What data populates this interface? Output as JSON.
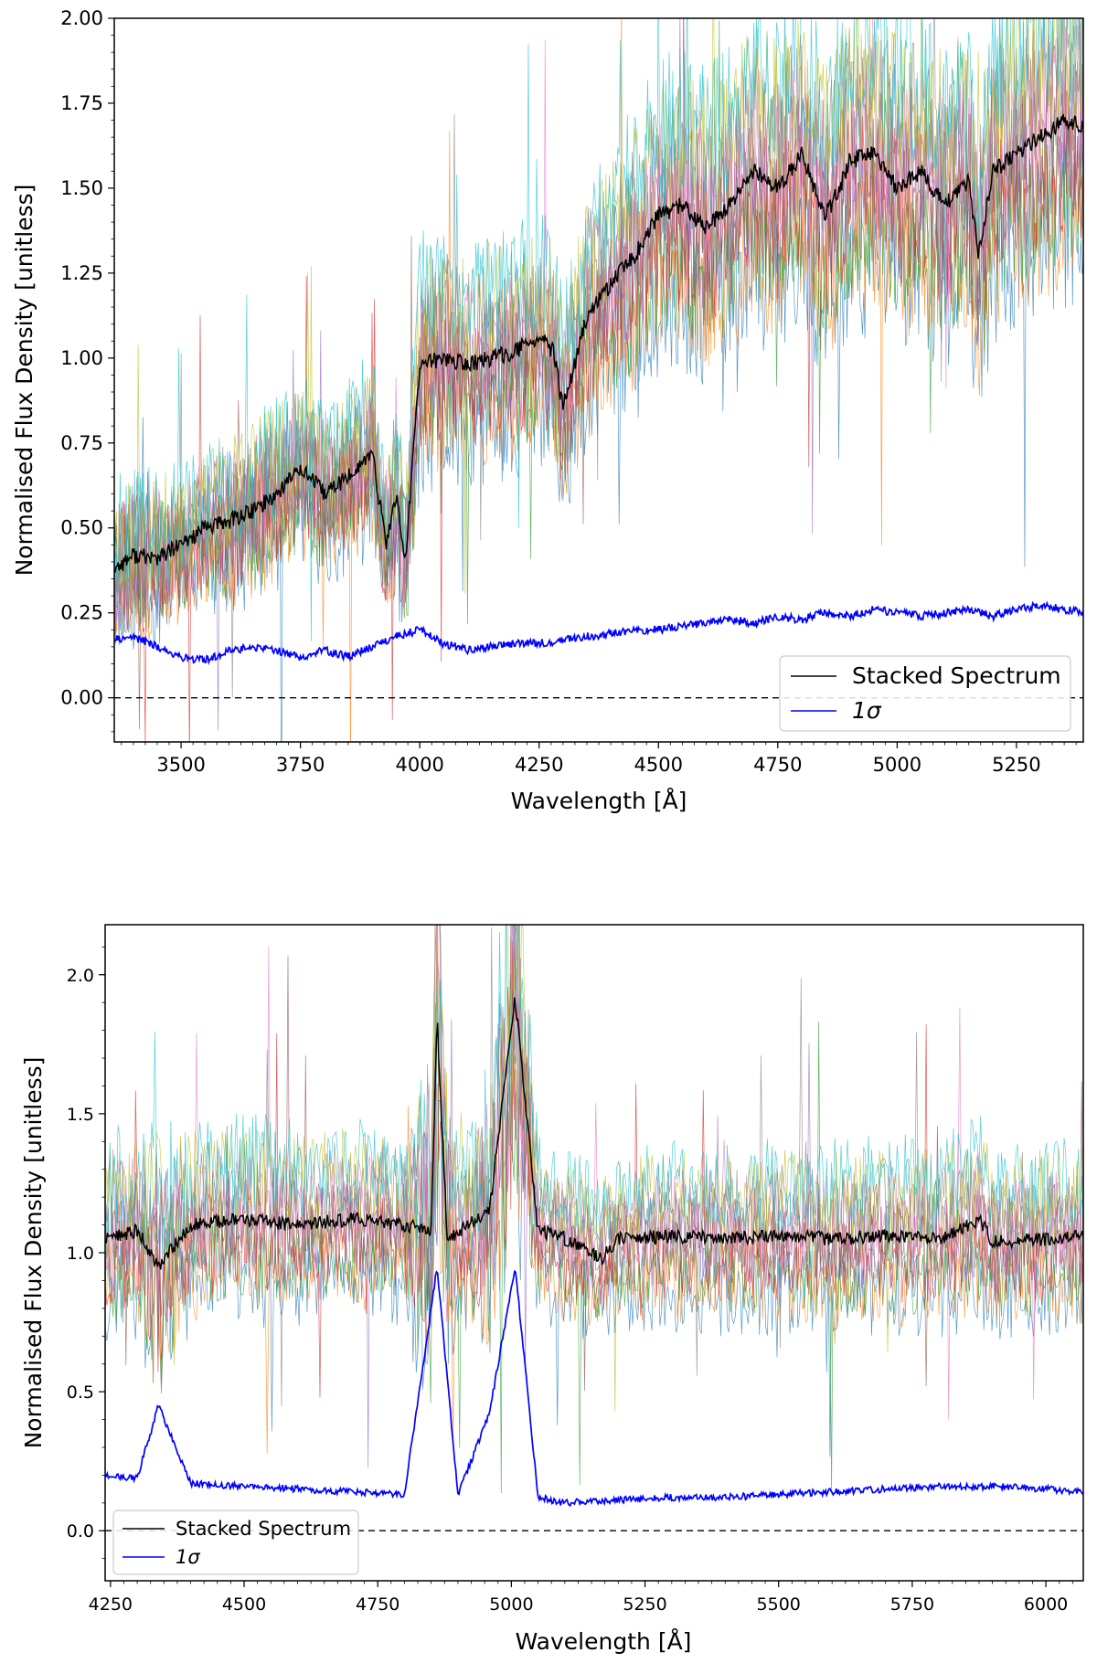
{
  "chart_data": [
    {
      "type": "line",
      "xlabel": "Wavelength [Å]",
      "ylabel": "Normalised Flux Density [unitless]",
      "xlim": [
        3360,
        5390
      ],
      "ylim": [
        -0.13,
        2.0
      ],
      "xticks": [
        3500,
        3750,
        4000,
        4250,
        4500,
        4750,
        5000,
        5250
      ],
      "xtick_labels": [
        "3500",
        "3750",
        "4000",
        "4250",
        "4500",
        "4750",
        "5000",
        "5250"
      ],
      "yticks": [
        0.0,
        0.25,
        0.5,
        0.75,
        1.0,
        1.25,
        1.5,
        1.75,
        2.0
      ],
      "ytick_labels": [
        "0.00",
        "0.25",
        "0.50",
        "0.75",
        "1.00",
        "1.25",
        "1.50",
        "1.75",
        "2.00"
      ],
      "legend": {
        "placement": "lower-right",
        "entries": [
          "Stacked Spectrum",
          "1σ"
        ]
      },
      "reference_line": {
        "y": 0.0,
        "style": "dashed"
      },
      "series": [
        {
          "name": "Stacked Spectrum",
          "color": "#000000",
          "x": [
            3360,
            3400,
            3450,
            3500,
            3550,
            3600,
            3650,
            3700,
            3750,
            3800,
            3850,
            3900,
            3930,
            3950,
            3970,
            4000,
            4050,
            4100,
            4150,
            4200,
            4250,
            4280,
            4300,
            4350,
            4400,
            4450,
            4500,
            4550,
            4600,
            4650,
            4700,
            4750,
            4800,
            4850,
            4880,
            4900,
            4950,
            5000,
            5050,
            5100,
            5150,
            5170,
            5200,
            5250,
            5300,
            5350,
            5390
          ],
          "values": [
            0.38,
            0.42,
            0.41,
            0.45,
            0.5,
            0.52,
            0.55,
            0.6,
            0.68,
            0.6,
            0.65,
            0.72,
            0.45,
            0.6,
            0.4,
            0.98,
            1.0,
            0.98,
            1.0,
            1.02,
            1.06,
            1.02,
            0.85,
            1.12,
            1.22,
            1.3,
            1.42,
            1.45,
            1.38,
            1.45,
            1.55,
            1.5,
            1.6,
            1.42,
            1.5,
            1.58,
            1.6,
            1.5,
            1.55,
            1.45,
            1.52,
            1.3,
            1.55,
            1.6,
            1.65,
            1.7,
            1.68
          ]
        },
        {
          "name": "1σ",
          "color": "#0000ff",
          "x": [
            3360,
            3400,
            3450,
            3500,
            3550,
            3600,
            3650,
            3700,
            3750,
            3800,
            3850,
            3900,
            3950,
            4000,
            4050,
            4100,
            4150,
            4200,
            4250,
            4300,
            4350,
            4400,
            4450,
            4500,
            4550,
            4600,
            4650,
            4700,
            4750,
            4800,
            4850,
            4900,
            4950,
            5000,
            5050,
            5100,
            5150,
            5200,
            5250,
            5300,
            5350,
            5390
          ],
          "values": [
            0.17,
            0.18,
            0.15,
            0.12,
            0.11,
            0.14,
            0.15,
            0.14,
            0.12,
            0.14,
            0.12,
            0.15,
            0.18,
            0.2,
            0.16,
            0.14,
            0.15,
            0.16,
            0.16,
            0.17,
            0.18,
            0.19,
            0.2,
            0.2,
            0.21,
            0.22,
            0.23,
            0.22,
            0.24,
            0.23,
            0.25,
            0.24,
            0.26,
            0.25,
            0.24,
            0.25,
            0.26,
            0.24,
            0.26,
            0.27,
            0.26,
            0.25
          ]
        }
      ]
    },
    {
      "type": "line",
      "xlabel": "Wavelength [Å]",
      "ylabel": "Normalised Flux Density [unitless]",
      "xlim": [
        4240,
        6070
      ],
      "ylim": [
        -0.18,
        2.18
      ],
      "xticks": [
        4250,
        4500,
        4750,
        5000,
        5250,
        5500,
        5750,
        6000
      ],
      "xtick_labels": [
        "4250",
        "4500",
        "4750",
        "5000",
        "5250",
        "5500",
        "5750",
        "6000"
      ],
      "yticks": [
        0.0,
        0.5,
        1.0,
        1.5,
        2.0
      ],
      "ytick_labels": [
        "0.0",
        "0.5",
        "1.0",
        "1.5",
        "2.0"
      ],
      "legend": {
        "placement": "lower-left",
        "entries": [
          "Stacked Spectrum",
          "1σ"
        ]
      },
      "reference_line": {
        "y": 0.0,
        "style": "dashed"
      },
      "series": [
        {
          "name": "Stacked Spectrum",
          "color": "#000000",
          "x": [
            4240,
            4300,
            4340,
            4400,
            4500,
            4600,
            4700,
            4800,
            4850,
            4861,
            4880,
            4959,
            5007,
            5050,
            5100,
            5170,
            5200,
            5300,
            5400,
            5500,
            5600,
            5700,
            5800,
            5876,
            5900,
            6000,
            6070
          ],
          "values": [
            1.05,
            1.08,
            0.95,
            1.1,
            1.12,
            1.1,
            1.12,
            1.1,
            1.08,
            1.85,
            1.05,
            1.15,
            1.92,
            1.08,
            1.05,
            0.98,
            1.05,
            1.06,
            1.05,
            1.06,
            1.05,
            1.06,
            1.05,
            1.12,
            1.04,
            1.05,
            1.06
          ]
        },
        {
          "name": "1σ",
          "color": "#0000ff",
          "x": [
            4240,
            4300,
            4340,
            4400,
            4500,
            4600,
            4700,
            4800,
            4861,
            4900,
            4959,
            5007,
            5050,
            5100,
            5200,
            5300,
            5400,
            5500,
            5600,
            5700,
            5800,
            5900,
            6000,
            6070
          ],
          "values": [
            0.2,
            0.19,
            0.45,
            0.17,
            0.16,
            0.15,
            0.14,
            0.13,
            0.95,
            0.13,
            0.42,
            0.95,
            0.12,
            0.1,
            0.11,
            0.12,
            0.12,
            0.13,
            0.14,
            0.15,
            0.16,
            0.16,
            0.15,
            0.14
          ]
        }
      ]
    }
  ]
}
